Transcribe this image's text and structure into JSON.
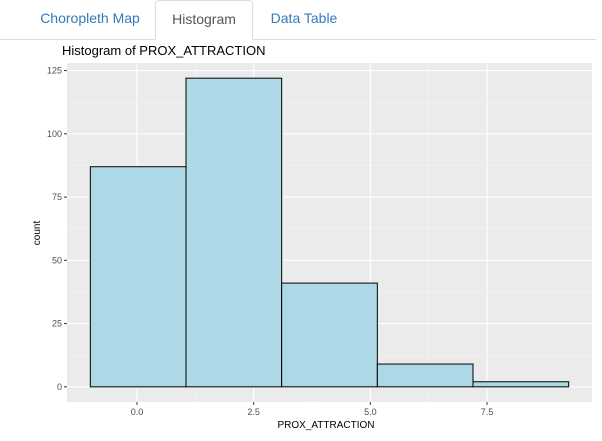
{
  "tabs": [
    {
      "label": "Choropleth Map",
      "active": false
    },
    {
      "label": "Histogram",
      "active": true
    },
    {
      "label": "Data Table",
      "active": false
    }
  ],
  "colors": {
    "panel_background": "#ebebeb",
    "bar_fill": "#add8e6",
    "bar_outline": "#000000",
    "tab_link": "#337ab7"
  },
  "chart_data": {
    "type": "bar",
    "title": "Histogram of PROX_ATTRACTION",
    "xlabel": "PROX_ATTRACTION",
    "ylabel": "count",
    "bins": [
      {
        "start": -1.0,
        "end": 1.05,
        "count": 87
      },
      {
        "start": 1.05,
        "end": 3.1,
        "count": 122
      },
      {
        "start": 3.1,
        "end": 5.15,
        "count": 41
      },
      {
        "start": 5.15,
        "end": 7.2,
        "count": 9
      },
      {
        "start": 7.2,
        "end": 9.25,
        "count": 2
      }
    ],
    "xlim": [
      -1.5,
      9.75
    ],
    "ylim": [
      -6,
      128
    ],
    "xticks": [
      {
        "value": 0,
        "label": "0.0"
      },
      {
        "value": 2.5,
        "label": "2.5"
      },
      {
        "value": 5,
        "label": "5.0"
      },
      {
        "value": 7.5,
        "label": "7.5"
      }
    ],
    "yticks": [
      {
        "value": 0,
        "label": "0"
      },
      {
        "value": 25,
        "label": "25"
      },
      {
        "value": 50,
        "label": "50"
      },
      {
        "value": 75,
        "label": "75"
      },
      {
        "value": 100,
        "label": "100"
      },
      {
        "value": 125,
        "label": "125"
      }
    ],
    "grid": true,
    "legend": "none"
  }
}
